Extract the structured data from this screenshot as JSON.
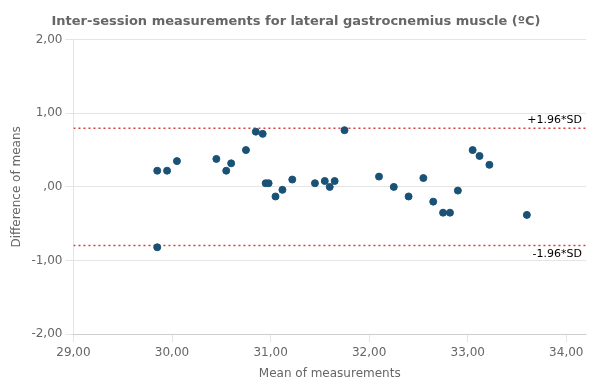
{
  "chart_data": {
    "type": "scatter",
    "title": "Inter-session measurements for lateral gastrocnemius muscle (ºC)",
    "xlabel": "Mean of measurements",
    "ylabel": "Difference of means",
    "x": [
      29.85,
      29.95,
      30.05,
      30.45,
      30.55,
      30.6,
      30.75,
      30.85,
      30.92,
      30.95,
      30.98,
      31.05,
      31.12,
      31.22,
      31.45,
      31.55,
      31.6,
      31.65,
      31.75,
      32.1,
      32.25,
      32.4,
      32.55,
      32.65,
      32.75,
      32.82,
      32.9,
      33.05,
      33.12,
      33.22,
      33.6,
      29.85
    ],
    "values": [
      0.22,
      0.22,
      0.35,
      0.38,
      0.22,
      0.32,
      0.5,
      0.75,
      0.72,
      0.05,
      0.05,
      -0.13,
      -0.04,
      0.1,
      0.05,
      0.08,
      0.0,
      0.08,
      0.77,
      0.14,
      0.0,
      -0.13,
      0.12,
      -0.2,
      -0.35,
      -0.35,
      -0.05,
      0.5,
      0.42,
      0.3,
      -0.38,
      -0.82
    ],
    "color": "#1a5276",
    "xlim": [
      29.0,
      34.2
    ],
    "ylim": [
      -2.0,
      2.0
    ],
    "xticks": [
      {
        "value": 29.0,
        "label": "29,00"
      },
      {
        "value": 30.0,
        "label": "30,00"
      },
      {
        "value": 31.0,
        "label": "31,00"
      },
      {
        "value": 32.0,
        "label": "32,00"
      },
      {
        "value": 33.0,
        "label": "33,00"
      },
      {
        "value": 34.0,
        "label": "34,00"
      }
    ],
    "yticks": [
      {
        "value": -2.0,
        "label": "-2,00"
      },
      {
        "value": -1.0,
        "label": "-1,00"
      },
      {
        "value": 0.0,
        "label": ",00"
      },
      {
        "value": 1.0,
        "label": "1,00"
      },
      {
        "value": 2.0,
        "label": "2,00"
      }
    ],
    "grid": "y",
    "annotations": [
      {
        "type": "hline",
        "y": 0.795,
        "text": "+1.96*SD",
        "color": "#d04040",
        "line_style": "dotted",
        "position": "above"
      },
      {
        "type": "hline",
        "y": -0.795,
        "text": "-1.96*SD",
        "color": "#d04040",
        "line_style": "dotted",
        "position": "below"
      }
    ]
  }
}
